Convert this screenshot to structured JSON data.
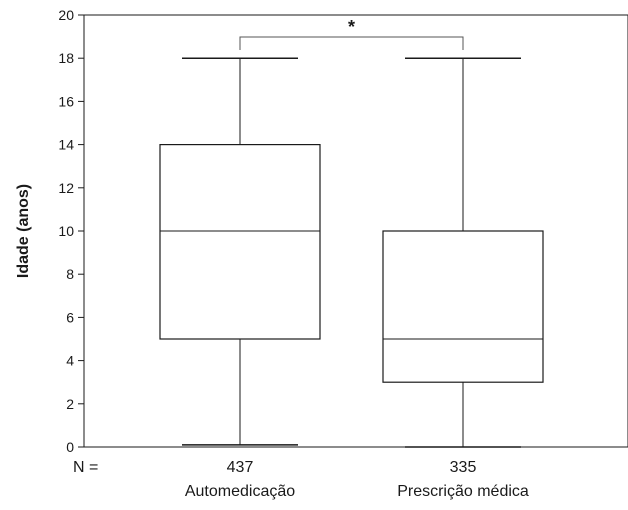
{
  "chart_data": {
    "type": "box",
    "title": "",
    "xlabel": "",
    "ylabel": "Idade (anos)",
    "ylim": [
      0,
      20
    ],
    "yticks": [
      0,
      2,
      4,
      6,
      8,
      10,
      12,
      14,
      16,
      18,
      20
    ],
    "grid": false,
    "legend": "none",
    "n_label": "N =",
    "significance_marker": "*",
    "categories": [
      "Automedicação",
      "Prescrição médica"
    ],
    "boxes": [
      {
        "category": "Automedicação",
        "n": "437",
        "min": 0.1,
        "q1": 5,
        "median": 10,
        "q3": 14,
        "max": 18
      },
      {
        "category": "Prescrição médica",
        "n": "335",
        "min": 0,
        "q1": 3,
        "median": 5,
        "q3": 10,
        "max": 18
      }
    ],
    "colors": {
      "stroke": "#1a1a1a",
      "box_fill": "#ffffff",
      "background": "#ffffff"
    }
  }
}
